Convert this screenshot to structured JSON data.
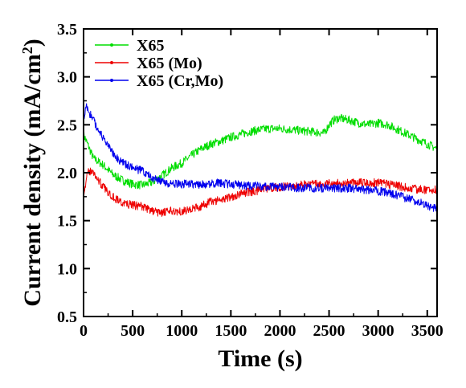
{
  "chart_data": {
    "type": "line",
    "xlabel": "Time (s)",
    "ylabel_main": "Current  density (mA/cm",
    "ylabel_sup": "2",
    "ylabel_close": ")",
    "xlim": [
      0,
      3600
    ],
    "ylim": [
      0.5,
      3.5
    ],
    "x_ticks": [
      0,
      500,
      1000,
      1500,
      2000,
      2500,
      3000,
      3500
    ],
    "x_tick_labels": [
      "0",
      "500",
      "1000",
      "1500",
      "2000",
      "2500",
      "3000",
      "3500"
    ],
    "y_ticks": [
      0.5,
      1.0,
      1.5,
      2.0,
      2.5,
      3.0,
      3.5
    ],
    "y_tick_labels": [
      "0.5",
      "1.0",
      "1.5",
      "2.0",
      "2.5",
      "3.0",
      "3.5"
    ],
    "grid": false,
    "legend_position": "top-left",
    "series": [
      {
        "name": "X65",
        "color": "#00dd00",
        "x": [
          0,
          100,
          200,
          300,
          400,
          500,
          600,
          700,
          800,
          900,
          1000,
          1100,
          1200,
          1300,
          1400,
          1500,
          1600,
          1700,
          1800,
          1900,
          2000,
          2100,
          2200,
          2300,
          2400,
          2450,
          2500,
          2550,
          2600,
          2700,
          2800,
          2900,
          3000,
          3100,
          3200,
          3300,
          3400,
          3500,
          3600
        ],
        "y": [
          2.4,
          2.15,
          2.08,
          1.98,
          1.92,
          1.88,
          1.87,
          1.9,
          1.97,
          2.05,
          2.1,
          2.18,
          2.25,
          2.3,
          2.33,
          2.37,
          2.4,
          2.43,
          2.45,
          2.46,
          2.46,
          2.45,
          2.44,
          2.43,
          2.42,
          2.41,
          2.5,
          2.55,
          2.57,
          2.55,
          2.52,
          2.5,
          2.52,
          2.5,
          2.45,
          2.4,
          2.35,
          2.3,
          2.25
        ]
      },
      {
        "name": "X65 (Mo)",
        "color": "#ee0000",
        "x": [
          0,
          50,
          100,
          200,
          300,
          400,
          500,
          600,
          700,
          800,
          900,
          1000,
          1100,
          1200,
          1300,
          1400,
          1500,
          1600,
          1700,
          1800,
          1900,
          2000,
          2100,
          2200,
          2300,
          2400,
          2500,
          2600,
          2700,
          2800,
          2900,
          3000,
          3100,
          3200,
          3300,
          3400,
          3500,
          3600
        ],
        "y": [
          1.78,
          2.02,
          2.0,
          1.85,
          1.75,
          1.68,
          1.66,
          1.65,
          1.6,
          1.58,
          1.6,
          1.6,
          1.62,
          1.65,
          1.7,
          1.72,
          1.75,
          1.78,
          1.8,
          1.82,
          1.84,
          1.85,
          1.86,
          1.87,
          1.88,
          1.88,
          1.89,
          1.89,
          1.9,
          1.9,
          1.9,
          1.89,
          1.88,
          1.86,
          1.84,
          1.83,
          1.82,
          1.82
        ]
      },
      {
        "name": "X65 (Cr,Mo)",
        "color": "#0000ee",
        "x": [
          0,
          30,
          60,
          100,
          150,
          200,
          300,
          400,
          500,
          600,
          700,
          800,
          900,
          1000,
          1100,
          1200,
          1300,
          1400,
          1500,
          1600,
          1700,
          1800,
          1900,
          2000,
          2100,
          2200,
          2300,
          2400,
          2500,
          2600,
          2700,
          2800,
          2900,
          3000,
          3100,
          3200,
          3300,
          3400,
          3500,
          3600
        ],
        "y": [
          2.55,
          2.7,
          2.62,
          2.55,
          2.45,
          2.35,
          2.2,
          2.1,
          2.05,
          2.02,
          1.95,
          1.9,
          1.88,
          1.88,
          1.88,
          1.88,
          1.89,
          1.89,
          1.88,
          1.87,
          1.86,
          1.86,
          1.85,
          1.85,
          1.85,
          1.84,
          1.84,
          1.84,
          1.84,
          1.84,
          1.84,
          1.83,
          1.82,
          1.81,
          1.79,
          1.76,
          1.73,
          1.7,
          1.66,
          1.62
        ]
      }
    ]
  }
}
